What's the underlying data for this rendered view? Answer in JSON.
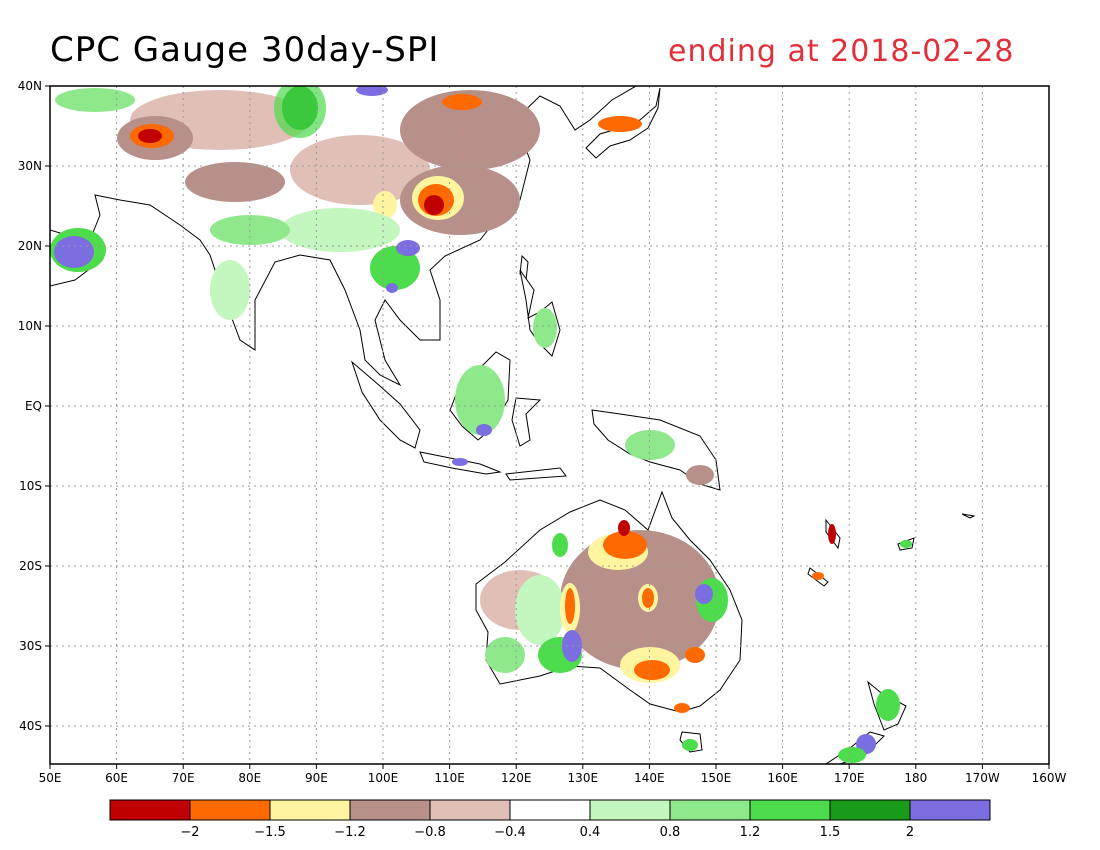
{
  "title": "CPC Gauge 30day-SPI",
  "subtitle": "ending at 2018-02-28",
  "x_ticks": [
    "50E",
    "60E",
    "70E",
    "80E",
    "90E",
    "100E",
    "110E",
    "120E",
    "130E",
    "140E",
    "150E",
    "160E",
    "170E",
    "180",
    "170W",
    "160W"
  ],
  "y_ticks": [
    "40N",
    "30N",
    "20N",
    "10N",
    "EQ",
    "10S",
    "20S",
    "30S",
    "40S"
  ],
  "colorbar": {
    "colors": [
      "#c00000",
      "#ff6a00",
      "#fff5a0",
      "#b8908a",
      "#e0c0b6",
      "#ffffff",
      "#c4f6c0",
      "#8fe88c",
      "#4cdc4c",
      "#1a9a1a",
      "#7b6ee0"
    ],
    "labels": [
      "-2",
      "-1.5",
      "-1.2",
      "-0.8",
      "-0.4",
      "0.4",
      "0.8",
      "1.2",
      "1.5",
      "2"
    ]
  },
  "colors": {
    "land_outline": "#000000",
    "grid": "#999999",
    "dry_extreme": "#c00000",
    "dry_severe": "#ff6a00",
    "dry_moderate": "#fff5a0",
    "dry_mild": "#b8908a",
    "dry_weak": "#e0c0b6",
    "wet_weak": "#c4f6c0",
    "wet_mild": "#8fe88c",
    "wet_moderate": "#4cdc4c",
    "wet_severe": "#1a9a1a",
    "wet_extreme": "#7b6ee0"
  }
}
